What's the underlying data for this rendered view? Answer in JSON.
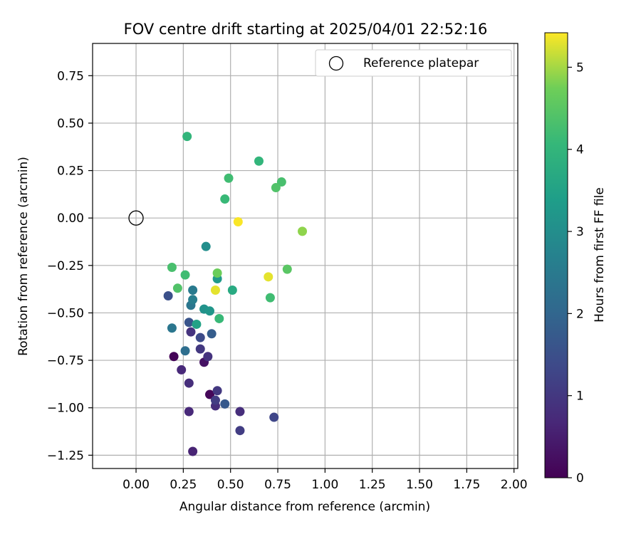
{
  "chart_data": {
    "type": "scatter",
    "title": "FOV centre drift starting at 2025/04/01 22:52:16",
    "xlabel": "Angular distance from reference (arcmin)",
    "ylabel": "Rotation from reference (arcmin)",
    "xlim": [
      -0.23,
      2.02
    ],
    "ylim": [
      -1.32,
      0.92
    ],
    "x_ticks": [
      0.0,
      0.25,
      0.5,
      0.75,
      1.0,
      1.25,
      1.5,
      1.75,
      2.0
    ],
    "x_tick_labels": [
      "0.00",
      "0.25",
      "0.50",
      "0.75",
      "1.00",
      "1.25",
      "1.50",
      "1.75",
      "2.00"
    ],
    "y_ticks": [
      0.75,
      0.5,
      0.25,
      0.0,
      -0.25,
      -0.5,
      -0.75,
      -1.0,
      -1.25
    ],
    "y_tick_labels": [
      "0.75",
      "0.50",
      "0.25",
      "0.00",
      "−0.25",
      "−0.50",
      "−0.75",
      "−1.00",
      "−1.25"
    ],
    "grid": true,
    "legend": {
      "placement": "upper-right",
      "entries": [
        {
          "label": "Reference platepar",
          "marker": "open-circle",
          "color": "#000000"
        }
      ]
    },
    "reference_point": {
      "x": 0.0,
      "y": 0.0
    },
    "colorbar": {
      "label": "Hours from first FF file",
      "range": [
        0,
        5.42
      ],
      "ticks": [
        0,
        1,
        2,
        3,
        4,
        5
      ],
      "tick_labels": [
        "0",
        "1",
        "2",
        "3",
        "4",
        "5"
      ],
      "colormap": "viridis"
    },
    "points": [
      {
        "x": 0.2,
        "y": -0.73,
        "c": 0.05
      },
      {
        "x": 0.39,
        "y": -0.93,
        "c": 0.1
      },
      {
        "x": 0.36,
        "y": -0.76,
        "c": 0.3
      },
      {
        "x": 0.3,
        "y": -1.23,
        "c": 0.6
      },
      {
        "x": 0.28,
        "y": -1.02,
        "c": 0.7
      },
      {
        "x": 0.24,
        "y": -0.8,
        "c": 0.7
      },
      {
        "x": 0.42,
        "y": -0.99,
        "c": 0.8
      },
      {
        "x": 0.55,
        "y": -1.02,
        "c": 0.8
      },
      {
        "x": 0.28,
        "y": -0.87,
        "c": 0.8
      },
      {
        "x": 0.29,
        "y": -0.6,
        "c": 0.9
      },
      {
        "x": 0.38,
        "y": -0.73,
        "c": 0.9
      },
      {
        "x": 0.34,
        "y": -0.69,
        "c": 1.0
      },
      {
        "x": 0.43,
        "y": -0.91,
        "c": 1.0
      },
      {
        "x": 0.55,
        "y": -1.12,
        "c": 1.1
      },
      {
        "x": 0.42,
        "y": -0.96,
        "c": 1.1
      },
      {
        "x": 0.73,
        "y": -1.05,
        "c": 1.3
      },
      {
        "x": 0.34,
        "y": -0.63,
        "c": 1.4
      },
      {
        "x": 0.17,
        "y": -0.41,
        "c": 1.5
      },
      {
        "x": 0.28,
        "y": -0.55,
        "c": 1.6
      },
      {
        "x": 0.47,
        "y": -0.98,
        "c": 1.7
      },
      {
        "x": 0.4,
        "y": -0.61,
        "c": 1.8
      },
      {
        "x": 0.26,
        "y": -0.7,
        "c": 2.2
      },
      {
        "x": 0.19,
        "y": -0.58,
        "c": 2.4
      },
      {
        "x": 0.29,
        "y": -0.46,
        "c": 2.4
      },
      {
        "x": 0.3,
        "y": -0.38,
        "c": 2.5
      },
      {
        "x": 0.3,
        "y": -0.43,
        "c": 2.6
      },
      {
        "x": 0.37,
        "y": -0.15,
        "c": 3.0
      },
      {
        "x": 0.36,
        "y": -0.48,
        "c": 3.1
      },
      {
        "x": 0.39,
        "y": -0.49,
        "c": 3.2
      },
      {
        "x": 0.43,
        "y": -0.32,
        "c": 3.3
      },
      {
        "x": 0.32,
        "y": -0.56,
        "c": 3.5
      },
      {
        "x": 0.51,
        "y": -0.38,
        "c": 3.7
      },
      {
        "x": 0.27,
        "y": 0.43,
        "c": 4.0
      },
      {
        "x": 0.65,
        "y": 0.3,
        "c": 4.0
      },
      {
        "x": 0.44,
        "y": -0.53,
        "c": 4.1
      },
      {
        "x": 0.47,
        "y": 0.1,
        "c": 4.1
      },
      {
        "x": 0.26,
        "y": -0.3,
        "c": 4.2
      },
      {
        "x": 0.49,
        "y": 0.21,
        "c": 4.2
      },
      {
        "x": 0.71,
        "y": -0.42,
        "c": 4.2
      },
      {
        "x": 0.19,
        "y": -0.26,
        "c": 4.3
      },
      {
        "x": 0.77,
        "y": 0.19,
        "c": 4.3
      },
      {
        "x": 0.74,
        "y": 0.16,
        "c": 4.4
      },
      {
        "x": 0.22,
        "y": -0.37,
        "c": 4.4
      },
      {
        "x": 0.8,
        "y": -0.27,
        "c": 4.5
      },
      {
        "x": 0.43,
        "y": -0.29,
        "c": 4.7
      },
      {
        "x": 0.88,
        "y": -0.07,
        "c": 4.9
      },
      {
        "x": 0.7,
        "y": -0.31,
        "c": 5.3
      },
      {
        "x": 0.42,
        "y": -0.38,
        "c": 5.3
      },
      {
        "x": 0.54,
        "y": -0.02,
        "c": 5.4
      }
    ]
  }
}
